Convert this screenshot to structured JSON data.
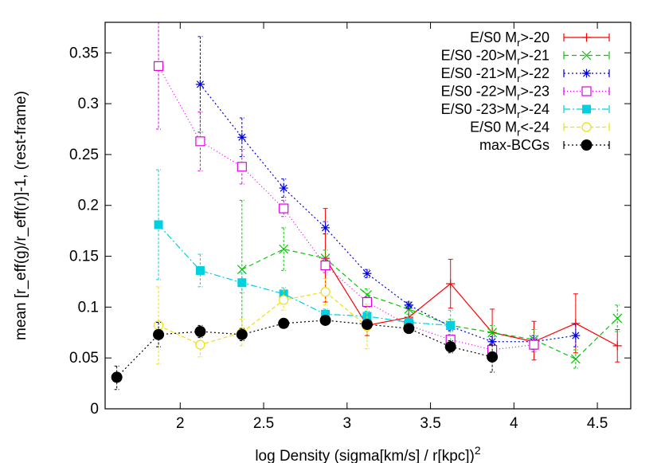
{
  "chart_data": {
    "type": "line",
    "xlabel": "log Density (sigma[km/s] / r[kpc])",
    "xlabel_sup": "2",
    "ylabel": "mean [r_eff(g)/r_eff(r)]-1, (rest-frame)",
    "xlim": [
      1.55,
      4.7
    ],
    "ylim": [
      0,
      0.38
    ],
    "xticks": [
      "2",
      "2.5",
      "3",
      "3.5",
      "4",
      "4.5"
    ],
    "yticks": [
      "0",
      "0.05",
      "0.1",
      "0.15",
      "0.2",
      "0.25",
      "0.3",
      "0.35"
    ],
    "legend_position": "top-right",
    "grid": false,
    "series": [
      {
        "name": "E/S0 M_r>-20",
        "legend_parts": [
          "E/S0 M",
          "r",
          ">-20"
        ],
        "color": "#ff0000",
        "dash": "",
        "marker": "plus",
        "points": [
          [
            2.87,
            0.148,
            0.197,
            0.105
          ],
          [
            3.12,
            0.082,
            0.09,
            0.072
          ],
          [
            3.37,
            0.09,
            0.098,
            0.082
          ],
          [
            3.62,
            0.123,
            0.147,
            0.099
          ],
          [
            3.87,
            0.075,
            0.098,
            0.052
          ],
          [
            4.12,
            0.066,
            0.086,
            0.048
          ],
          [
            4.37,
            0.084,
            0.113,
            0.055
          ],
          [
            4.62,
            0.062,
            0.078,
            0.046
          ]
        ]
      },
      {
        "name": "E/S0 -20>M_r>-21",
        "legend_parts": [
          "E/S0 -20>M",
          "r",
          ">-21"
        ],
        "color": "#00c800",
        "dash": "6,4",
        "marker": "x",
        "points": [
          [
            2.37,
            0.137,
            0.205,
            0.069
          ],
          [
            2.62,
            0.157,
            0.178,
            0.136
          ],
          [
            2.87,
            0.148,
            0.156,
            0.14
          ],
          [
            3.12,
            0.112,
            0.118,
            0.106
          ],
          [
            3.37,
            0.098,
            0.103,
            0.093
          ],
          [
            3.62,
            0.082,
            0.088,
            0.076
          ],
          [
            3.87,
            0.075,
            0.082,
            0.068
          ],
          [
            4.12,
            0.068,
            0.078,
            0.058
          ],
          [
            4.37,
            0.049,
            0.058,
            0.04
          ],
          [
            4.62,
            0.089,
            0.102,
            0.076
          ]
        ]
      },
      {
        "name": "E/S0 -21>M_r>-22",
        "legend_parts": [
          "E/S0 -21>M",
          "r",
          ">-22"
        ],
        "color": "#0000e0",
        "dash": "2,3",
        "marker": "star",
        "points": [
          [
            2.12,
            0.319,
            0.366,
            0.272
          ],
          [
            2.37,
            0.267,
            0.286,
            0.248
          ],
          [
            2.62,
            0.217,
            0.226,
            0.208
          ],
          [
            2.87,
            0.178,
            0.184,
            0.172
          ],
          [
            3.12,
            0.133,
            0.137,
            0.129
          ],
          [
            3.37,
            0.102,
            0.105,
            0.099
          ],
          [
            3.62,
            0.081,
            0.085,
            0.077
          ],
          [
            3.87,
            0.066,
            0.071,
            0.061
          ],
          [
            4.12,
            0.066,
            0.072,
            0.06
          ],
          [
            4.37,
            0.072,
            0.083,
            0.061
          ]
        ]
      },
      {
        "name": "E/S0 -22>M_r>-23",
        "legend_parts": [
          "E/S0 -22>M",
          "r",
          ">-23"
        ],
        "color": "#e000e0",
        "dash": "1,3",
        "marker": "square",
        "points": [
          [
            1.87,
            0.337,
            0.4,
            0.275
          ],
          [
            2.12,
            0.263,
            0.292,
            0.234
          ],
          [
            2.37,
            0.238,
            0.255,
            0.221
          ],
          [
            2.62,
            0.197,
            0.205,
            0.189
          ],
          [
            2.87,
            0.141,
            0.148,
            0.134
          ],
          [
            3.12,
            0.105,
            0.11,
            0.1
          ],
          [
            3.37,
            0.082,
            0.086,
            0.078
          ],
          [
            3.62,
            0.068,
            0.073,
            0.063
          ],
          [
            3.87,
            0.058,
            0.064,
            0.052
          ],
          [
            4.12,
            0.063,
            0.07,
            0.056
          ]
        ]
      },
      {
        "name": "E/S0 -23>M_r>-24",
        "legend_parts": [
          "E/S0 -23>M",
          "r",
          ">-24"
        ],
        "color": "#00d0e0",
        "dash": "8,3,2,3",
        "marker": "filled-square",
        "points": [
          [
            1.87,
            0.181,
            0.235,
            0.127
          ],
          [
            2.12,
            0.136,
            0.152,
            0.12
          ],
          [
            2.37,
            0.124,
            0.134,
            0.114
          ],
          [
            2.62,
            0.113,
            0.119,
            0.107
          ],
          [
            2.87,
            0.093,
            0.098,
            0.088
          ],
          [
            3.12,
            0.091,
            0.096,
            0.086
          ],
          [
            3.37,
            0.085,
            0.09,
            0.08
          ],
          [
            3.62,
            0.082,
            0.097,
            0.067
          ]
        ]
      },
      {
        "name": "E/S0 M_r<-24",
        "legend_parts": [
          "E/S0 M",
          "r",
          "<-24"
        ],
        "color": "#f0e000",
        "dash": "5,3",
        "marker": "circle",
        "points": [
          [
            1.87,
            0.082,
            0.12,
            0.044
          ],
          [
            2.12,
            0.063,
            0.075,
            0.051
          ],
          [
            2.37,
            0.075,
            0.088,
            0.062
          ],
          [
            2.62,
            0.107,
            0.117,
            0.097
          ],
          [
            2.87,
            0.115,
            0.128,
            0.102
          ],
          [
            3.12,
            0.081,
            0.103,
            0.059
          ]
        ]
      },
      {
        "name": "max-BCGs",
        "legend_parts": [
          "max-BCGs",
          "",
          ""
        ],
        "color": "#000000",
        "dash": "2,3",
        "marker": "filled-circle",
        "points": [
          [
            1.62,
            0.031,
            0.042,
            0.019
          ],
          [
            1.87,
            0.073,
            0.085,
            0.061
          ],
          [
            2.12,
            0.076,
            0.082,
            0.07
          ],
          [
            2.37,
            0.073,
            0.079,
            0.067
          ],
          [
            2.62,
            0.084,
            0.088,
            0.08
          ],
          [
            2.87,
            0.087,
            0.09,
            0.084
          ],
          [
            3.12,
            0.083,
            0.087,
            0.079
          ],
          [
            3.37,
            0.079,
            0.083,
            0.075
          ],
          [
            3.62,
            0.061,
            0.067,
            0.055
          ],
          [
            3.87,
            0.051,
            0.063,
            0.036
          ]
        ]
      }
    ]
  }
}
